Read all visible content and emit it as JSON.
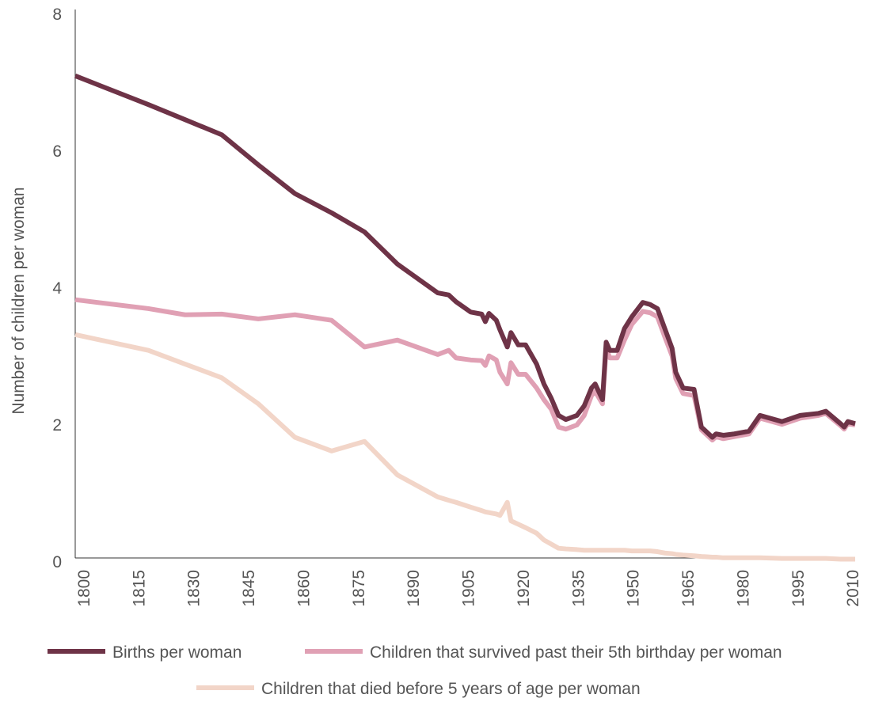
{
  "chart_data": {
    "type": "line",
    "y_label": "Number of children per woman",
    "x": [
      1800,
      1820,
      1830,
      1840,
      1850,
      1860,
      1870,
      1879,
      1888,
      1899,
      1902,
      1904,
      1908,
      1911,
      1912,
      1913,
      1915,
      1916,
      1918,
      1919,
      1921,
      1923,
      1926,
      1928,
      1930,
      1932,
      1934,
      1937,
      1939,
      1941,
      1942,
      1944,
      1945,
      1946,
      1948,
      1950,
      1952,
      1955,
      1957,
      1959,
      1961,
      1963,
      1964,
      1966,
      1969,
      1971,
      1974,
      1975,
      1977,
      1980,
      1984,
      1987,
      1993,
      1998,
      2003,
      2005,
      2009,
      2010,
      2011,
      2013
    ],
    "series": [
      {
        "name": "Births per woman",
        "color": "#6e3347",
        "values": [
          7.1,
          6.68,
          6.46,
          6.24,
          5.8,
          5.38,
          5.1,
          4.82,
          4.35,
          3.93,
          3.9,
          3.8,
          3.65,
          3.62,
          3.51,
          3.63,
          3.53,
          3.39,
          3.14,
          3.35,
          3.17,
          3.17,
          2.89,
          2.6,
          2.39,
          2.14,
          2.08,
          2.14,
          2.28,
          2.54,
          2.6,
          2.37,
          3.21,
          3.09,
          3.09,
          3.41,
          3.58,
          3.79,
          3.76,
          3.7,
          3.41,
          3.12,
          2.77,
          2.54,
          2.52,
          1.97,
          1.82,
          1.87,
          1.85,
          1.87,
          1.91,
          2.14,
          2.05,
          2.14,
          2.17,
          2.2,
          2.02,
          1.97,
          2.05,
          2.02
        ]
      },
      {
        "name": "Children that survived past their 5th birthday per woman",
        "color": "#e0a0b4",
        "values": [
          3.83,
          3.7,
          3.61,
          3.62,
          3.55,
          3.61,
          3.53,
          3.14,
          3.24,
          3.03,
          3.09,
          2.98,
          2.95,
          2.94,
          2.87,
          3.01,
          2.95,
          2.77,
          2.6,
          2.91,
          2.74,
          2.74,
          2.54,
          2.37,
          2.23,
          1.97,
          1.94,
          2.0,
          2.14,
          2.43,
          2.49,
          2.31,
          3.12,
          2.98,
          2.98,
          3.24,
          3.47,
          3.66,
          3.64,
          3.58,
          3.29,
          3.01,
          2.68,
          2.46,
          2.43,
          1.93,
          1.78,
          1.83,
          1.8,
          1.83,
          1.87,
          2.1,
          2.01,
          2.1,
          2.14,
          2.17,
          1.99,
          1.94,
          2.02,
          2.0
        ]
      },
      {
        "name": "Children that died before 5 years of age per woman",
        "color": "#f2d5c8",
        "values": [
          3.32,
          3.09,
          2.89,
          2.69,
          2.31,
          1.82,
          1.62,
          1.76,
          1.27,
          0.95,
          0.9,
          0.87,
          0.8,
          0.75,
          0.73,
          0.72,
          0.7,
          0.68,
          0.87,
          0.6,
          0.55,
          0.5,
          0.42,
          0.32,
          0.26,
          0.2,
          0.19,
          0.18,
          0.17,
          0.17,
          0.17,
          0.17,
          0.17,
          0.17,
          0.17,
          0.17,
          0.16,
          0.16,
          0.16,
          0.15,
          0.13,
          0.12,
          0.11,
          0.1,
          0.09,
          0.08,
          0.07,
          0.07,
          0.06,
          0.06,
          0.06,
          0.06,
          0.05,
          0.05,
          0.05,
          0.05,
          0.04,
          0.04,
          0.04,
          0.04
        ]
      }
    ],
    "xlim": [
      1800,
      2013
    ],
    "xticks": [
      1800,
      1815,
      1830,
      1845,
      1860,
      1875,
      1890,
      1905,
      1920,
      1935,
      1950,
      1965,
      1980,
      1995,
      2010
    ],
    "ylim": [
      0,
      8
    ],
    "yticks": [
      0,
      2,
      4,
      6,
      8
    ],
    "legend": "bottom"
  }
}
